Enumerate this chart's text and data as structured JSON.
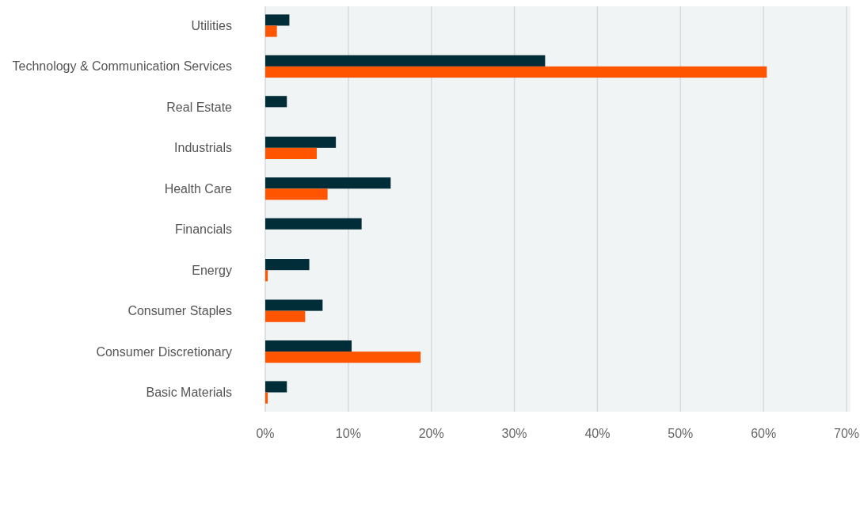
{
  "chart_data": {
    "type": "bar",
    "orientation": "horizontal",
    "categories": [
      "Utilities",
      "Technology & Communication Services",
      "Real Estate",
      "Industrials",
      "Health Care",
      "Financials",
      "Energy",
      "Consumer Staples",
      "Consumer Discretionary",
      "Basic Materials"
    ],
    "series": [
      {
        "color": "#002d38",
        "values": [
          2.9,
          33.7,
          2.6,
          8.5,
          15.1,
          11.6,
          5.3,
          6.9,
          10.4,
          2.6
        ]
      },
      {
        "color": "#ff5500",
        "values": [
          1.4,
          60.4,
          null,
          6.2,
          7.5,
          null,
          0.3,
          4.8,
          18.7,
          0.3
        ]
      }
    ],
    "xlim": [
      0,
      70
    ],
    "xticks": [
      {
        "value": 0,
        "label": "0%"
      },
      {
        "value": 10,
        "label": "10%"
      },
      {
        "value": 20,
        "label": "20%"
      },
      {
        "value": 30,
        "label": "30%"
      },
      {
        "value": 40,
        "label": "40%"
      },
      {
        "value": 50,
        "label": "50%"
      },
      {
        "value": 60,
        "label": "60%"
      },
      {
        "value": 70,
        "label": "70%"
      }
    ],
    "grid": "x",
    "legend": false
  }
}
